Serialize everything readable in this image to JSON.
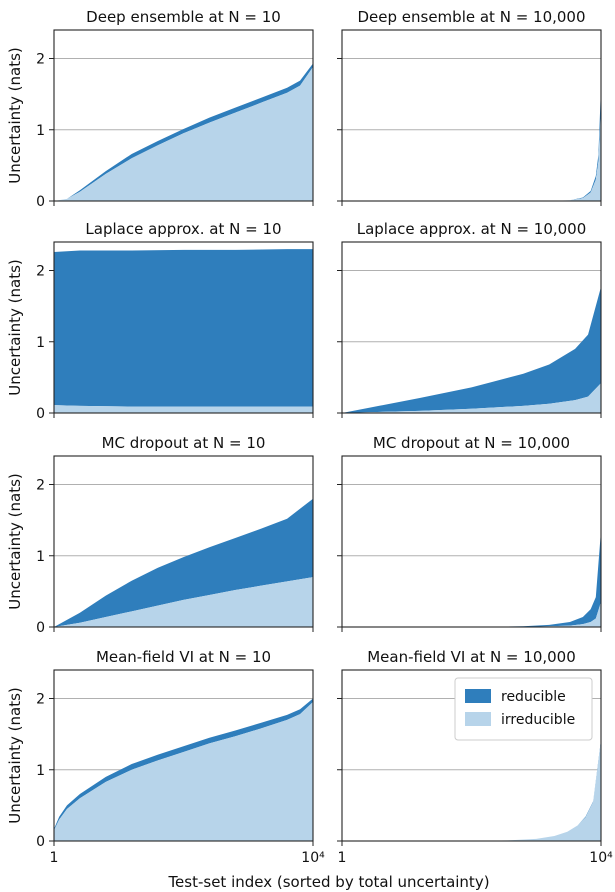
{
  "figure": {
    "xlabel": "Test-set index (sorted by total uncertainty)",
    "ylabel": "Uncertainty (nats)",
    "legend": {
      "placement": "top-right of last panel",
      "items": [
        "reducible",
        "irreducible"
      ]
    },
    "colors": {
      "reducible": "#2f7ebc",
      "irreducible": "#b7d4ea",
      "grid": "#b0b0b0",
      "axis": "#222222"
    }
  },
  "chart_data": [
    {
      "type": "area",
      "title": "Deep ensemble at N = 10",
      "xlabel": "",
      "ylabel": "Uncertainty (nats)",
      "x": [
        0,
        0.05,
        0.1,
        0.2,
        0.3,
        0.4,
        0.5,
        0.6,
        0.7,
        0.8,
        0.9,
        0.95,
        1.0
      ],
      "x_ticks": [
        "1",
        "10⁴"
      ],
      "xlim": [
        "1",
        "10⁴"
      ],
      "ylim": [
        0,
        2.4
      ],
      "y_ticks": [
        0,
        1,
        2
      ],
      "grid_y": true,
      "series": [
        {
          "name": "irreducible",
          "values": [
            0.0,
            0.03,
            0.13,
            0.38,
            0.6,
            0.78,
            0.95,
            1.1,
            1.24,
            1.38,
            1.52,
            1.62,
            1.88
          ]
        },
        {
          "name": "reducible",
          "values": [
            0.0,
            0.0,
            0.02,
            0.04,
            0.06,
            0.06,
            0.06,
            0.07,
            0.07,
            0.07,
            0.07,
            0.07,
            0.05
          ]
        }
      ]
    },
    {
      "type": "area",
      "title": "Deep ensemble at N = 10,000",
      "xlabel": "",
      "ylabel": "",
      "x": [
        0,
        0.6,
        0.8,
        0.88,
        0.93,
        0.96,
        0.98,
        0.99,
        1.0
      ],
      "x_ticks": [
        "1",
        "10⁴"
      ],
      "xlim": [
        "1",
        "10⁴"
      ],
      "ylim": [
        0,
        2.4
      ],
      "y_ticks": [
        0,
        1,
        2
      ],
      "grid_y": true,
      "series": [
        {
          "name": "irreducible",
          "values": [
            0.0,
            0.0,
            0.0,
            0.01,
            0.04,
            0.12,
            0.3,
            0.55,
            1.3
          ]
        },
        {
          "name": "reducible",
          "values": [
            0.0,
            0.0,
            0.0,
            0.0,
            0.01,
            0.02,
            0.05,
            0.1,
            0.3
          ]
        }
      ]
    },
    {
      "type": "area",
      "title": "Laplace approx. at N = 10",
      "xlabel": "",
      "ylabel": "Uncertainty (nats)",
      "x": [
        0,
        0.1,
        0.3,
        0.5,
        0.7,
        0.9,
        1.0
      ],
      "x_ticks": [
        "1",
        "10⁴"
      ],
      "xlim": [
        "1",
        "10⁴"
      ],
      "ylim": [
        0,
        2.4
      ],
      "y_ticks": [
        0,
        1,
        2
      ],
      "grid_y": true,
      "series": [
        {
          "name": "irreducible",
          "values": [
            0.11,
            0.1,
            0.09,
            0.09,
            0.09,
            0.09,
            0.09
          ]
        },
        {
          "name": "reducible",
          "values": [
            2.15,
            2.18,
            2.19,
            2.2,
            2.2,
            2.21,
            2.21
          ]
        }
      ]
    },
    {
      "type": "area",
      "title": "Laplace approx. at N = 10,000",
      "xlabel": "",
      "ylabel": "",
      "x": [
        0,
        0.1,
        0.3,
        0.5,
        0.7,
        0.8,
        0.9,
        0.95,
        1.0
      ],
      "x_ticks": [
        "1",
        "10⁴"
      ],
      "xlim": [
        "1",
        "10⁴"
      ],
      "ylim": [
        0,
        2.4
      ],
      "y_ticks": [
        0,
        1,
        2
      ],
      "grid_y": true,
      "series": [
        {
          "name": "irreducible",
          "values": [
            0.0,
            0.01,
            0.03,
            0.06,
            0.1,
            0.13,
            0.18,
            0.23,
            0.42
          ]
        },
        {
          "name": "reducible",
          "values": [
            0.0,
            0.06,
            0.18,
            0.3,
            0.45,
            0.55,
            0.72,
            0.87,
            1.35
          ]
        }
      ]
    },
    {
      "type": "area",
      "title": "MC dropout at N = 10",
      "xlabel": "",
      "ylabel": "Uncertainty (nats)",
      "x": [
        0,
        0.1,
        0.2,
        0.3,
        0.4,
        0.5,
        0.6,
        0.7,
        0.8,
        0.9,
        1.0
      ],
      "x_ticks": [
        "1",
        "10⁴"
      ],
      "xlim": [
        "1",
        "10⁴"
      ],
      "ylim": [
        0,
        2.4
      ],
      "y_ticks": [
        0,
        1,
        2
      ],
      "grid_y": true,
      "series": [
        {
          "name": "irreducible",
          "values": [
            0.0,
            0.06,
            0.14,
            0.22,
            0.3,
            0.38,
            0.45,
            0.52,
            0.58,
            0.64,
            0.7
          ]
        },
        {
          "name": "reducible",
          "values": [
            0.0,
            0.14,
            0.3,
            0.43,
            0.53,
            0.6,
            0.67,
            0.73,
            0.8,
            0.88,
            1.1
          ]
        }
      ]
    },
    {
      "type": "area",
      "title": "MC dropout at N = 10,000",
      "xlabel": "",
      "ylabel": "",
      "x": [
        0,
        0.5,
        0.7,
        0.8,
        0.88,
        0.93,
        0.96,
        0.98,
        1.0
      ],
      "x_ticks": [
        "1",
        "10⁴"
      ],
      "xlim": [
        "1",
        "10⁴"
      ],
      "ylim": [
        0,
        2.4
      ],
      "y_ticks": [
        0,
        1,
        2
      ],
      "grid_y": true,
      "series": [
        {
          "name": "irreducible",
          "values": [
            0.0,
            0.0,
            0.0,
            0.01,
            0.02,
            0.04,
            0.07,
            0.12,
            0.35
          ]
        },
        {
          "name": "reducible",
          "values": [
            0.0,
            0.0,
            0.01,
            0.02,
            0.05,
            0.1,
            0.18,
            0.3,
            1.0
          ]
        }
      ]
    },
    {
      "type": "area",
      "title": "Mean-field VI at N = 10",
      "xlabel": "",
      "ylabel": "Uncertainty (nats)",
      "x": [
        0,
        0.02,
        0.05,
        0.1,
        0.2,
        0.3,
        0.4,
        0.5,
        0.6,
        0.7,
        0.8,
        0.9,
        0.95,
        1.0
      ],
      "x_ticks": [
        "1",
        "10⁴"
      ],
      "xlim": [
        "1",
        "10⁴"
      ],
      "ylim": [
        0,
        2.4
      ],
      "y_ticks": [
        0,
        1,
        2
      ],
      "grid_y": true,
      "series": [
        {
          "name": "irreducible",
          "values": [
            0.15,
            0.3,
            0.45,
            0.6,
            0.83,
            1.0,
            1.13,
            1.25,
            1.37,
            1.47,
            1.58,
            1.7,
            1.78,
            1.95
          ]
        },
        {
          "name": "reducible",
          "values": [
            0.02,
            0.04,
            0.05,
            0.06,
            0.07,
            0.08,
            0.08,
            0.08,
            0.08,
            0.08,
            0.08,
            0.07,
            0.07,
            0.05
          ]
        }
      ]
    },
    {
      "type": "area",
      "title": "Mean-field VI at N = 10,000",
      "xlabel": "",
      "ylabel": "",
      "x": [
        0,
        0.5,
        0.65,
        0.75,
        0.82,
        0.87,
        0.91,
        0.94,
        0.97,
        1.0
      ],
      "x_ticks": [
        "1",
        "10⁴"
      ],
      "xlim": [
        "1",
        "10⁴"
      ],
      "ylim": [
        0,
        2.4
      ],
      "y_ticks": [
        0,
        1,
        2
      ],
      "grid_y": true,
      "series": [
        {
          "name": "irreducible",
          "values": [
            0.0,
            0.0,
            0.01,
            0.03,
            0.07,
            0.13,
            0.22,
            0.33,
            0.55,
            1.4
          ]
        },
        {
          "name": "reducible",
          "values": [
            0.0,
            0.0,
            0.0,
            0.0,
            0.0,
            0.0,
            0.0,
            0.01,
            0.01,
            0.02
          ]
        }
      ]
    }
  ]
}
